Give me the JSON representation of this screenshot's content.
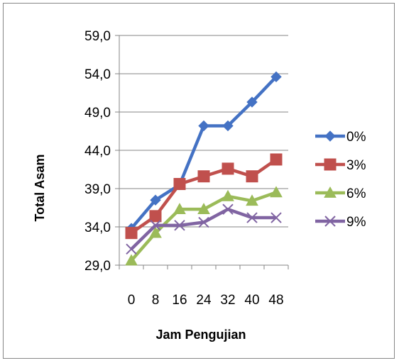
{
  "chart_data": {
    "type": "line",
    "xlabel": "Jam Pengujian",
    "ylabel": "Total Asam",
    "x": [
      "0",
      "8",
      "16",
      "24",
      "32",
      "40",
      "48"
    ],
    "y_ticks": [
      "59,0",
      "54,0",
      "49,0",
      "44,0",
      "39,0",
      "34,0",
      "29,0"
    ],
    "ylim": [
      29,
      59
    ],
    "grid": "horizontal",
    "legend_position": "right",
    "series": [
      {
        "name": "0%",
        "color": "#4472c4",
        "marker": "diamond",
        "values": [
          33.8,
          37.5,
          39.5,
          47.2,
          47.2,
          50.3,
          53.6
        ]
      },
      {
        "name": "3%",
        "color": "#c0504d",
        "marker": "square",
        "values": [
          33.2,
          35.4,
          39.6,
          40.6,
          41.6,
          40.6,
          42.8
        ]
      },
      {
        "name": "6%",
        "color": "#9bbb59",
        "marker": "triangle",
        "values": [
          29.6,
          33.2,
          36.3,
          36.3,
          38.0,
          37.4,
          38.5
        ]
      },
      {
        "name": "9%",
        "color": "#8064a2",
        "marker": "x",
        "values": [
          31.1,
          34.2,
          34.2,
          34.6,
          36.3,
          35.2,
          35.2
        ]
      }
    ]
  }
}
